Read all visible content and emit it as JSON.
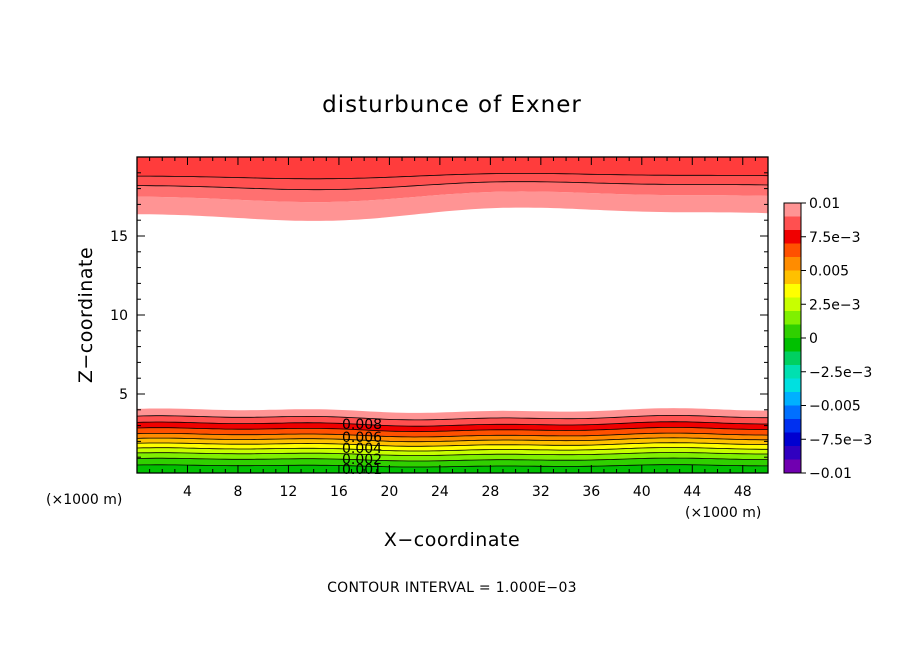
{
  "chart_data": {
    "type": "contour",
    "title": "disturbunce of Exner",
    "xlabel": "X−coordinate",
    "ylabel": "Z−coordinate",
    "x_unit": "(×1000 m)",
    "y_unit": "(×1000 m)",
    "xlim": [
      0,
      50
    ],
    "ylim": [
      0,
      20
    ],
    "x_ticks": [
      4,
      8,
      12,
      16,
      20,
      24,
      28,
      32,
      36,
      40,
      44,
      48
    ],
    "y_ticks": [
      5,
      10,
      15
    ],
    "contour_interval_text": "CONTOUR INTERVAL = 1.000E−03",
    "contour_labels": [
      "0.008",
      "0.006",
      "0.004",
      "0.002",
      "0.001"
    ],
    "colorbar": {
      "labels": [
        "0.01",
        "7.5e−3",
        "0.005",
        "2.5e−3",
        "0",
        "−2.5e−3",
        "−0.005",
        "−7.5e−3",
        "−0.01"
      ],
      "colors": [
        "#ff9494",
        "#ff5050",
        "#f00000",
        "#ff5000",
        "#ff8c00",
        "#ffc000",
        "#ffff00",
        "#c8ff00",
        "#80f000",
        "#30d000",
        "#00c000",
        "#00d060",
        "#00e0b0",
        "#00e0e0",
        "#00b0ff",
        "#0070ff",
        "#0030f0",
        "#0000d0",
        "#3000c0",
        "#7000b0"
      ]
    }
  }
}
